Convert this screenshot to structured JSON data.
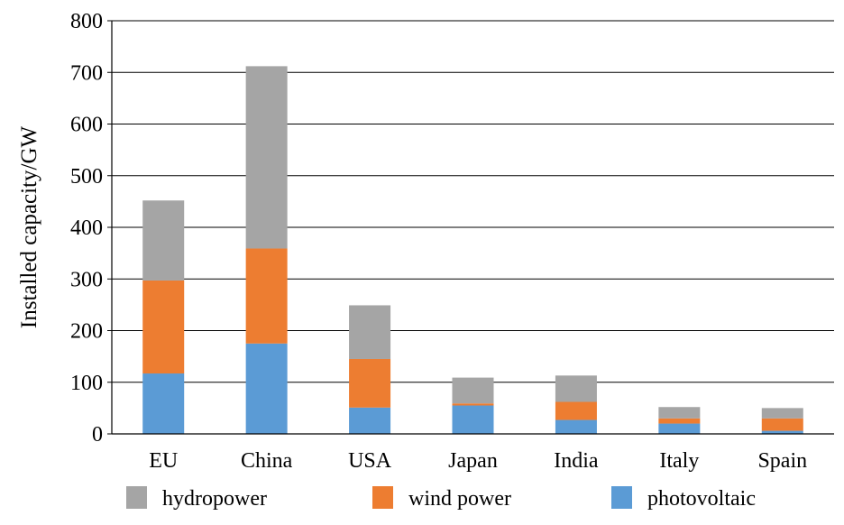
{
  "chart_data": {
    "type": "bar",
    "stacked": true,
    "title": "",
    "xlabel": "",
    "ylabel": "Installed capacity/GW",
    "ylim": [
      0,
      800
    ],
    "yticks": [
      0,
      100,
      200,
      300,
      400,
      500,
      600,
      700,
      800
    ],
    "grid": true,
    "legend_position": "bottom",
    "categories": [
      "EU",
      "China",
      "USA",
      "Japan",
      "India",
      "Italy",
      "Spain"
    ],
    "series": [
      {
        "name": "photovoltaic",
        "color": "#5B9BD5",
        "values": [
          117,
          175,
          51,
          55,
          27,
          20,
          6
        ]
      },
      {
        "name": "wind power",
        "color": "#ED7D31",
        "values": [
          180,
          184,
          94,
          4,
          35,
          10,
          24
        ]
      },
      {
        "name": "hydropower",
        "color": "#A5A5A5",
        "values": [
          155,
          353,
          104,
          50,
          51,
          22,
          20
        ]
      }
    ],
    "legend_order": [
      "hydropower",
      "wind power",
      "photovoltaic"
    ]
  }
}
